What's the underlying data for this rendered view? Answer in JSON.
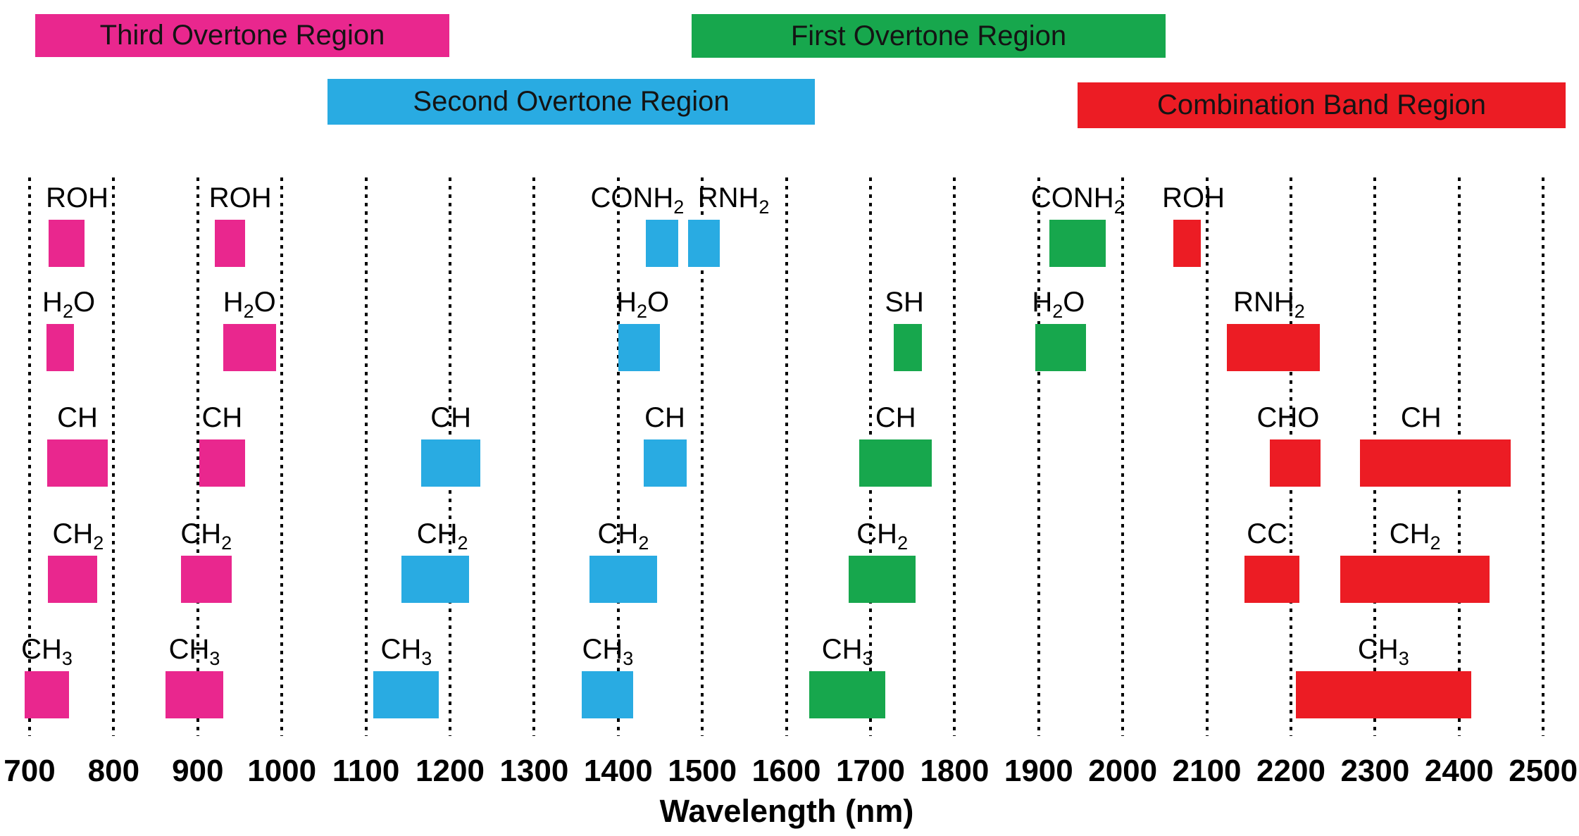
{
  "chart_data": {
    "type": "bar",
    "subtype": "horizontal-wavelength-band-chart",
    "title": "",
    "xlabel": "Wavelength (nm)",
    "x_min": 700,
    "x_max": 2500,
    "x_tick_step": 100,
    "x_ticks": [
      700,
      800,
      900,
      1000,
      1100,
      1200,
      1300,
      1400,
      1500,
      1600,
      1700,
      1800,
      1900,
      2000,
      2100,
      2200,
      2300,
      2400,
      2500
    ],
    "grid": "dotted-vertical",
    "legend_position": "top",
    "row_order": [
      "ROH",
      "H2O",
      "CH",
      "CH2",
      "CH3"
    ],
    "regions": [
      {
        "id": "third-overtone",
        "label": "Third Overtone Region",
        "color": "#E9278E",
        "bands": [
          {
            "label": "ROH",
            "row": 1,
            "nm": [
              723,
              765
            ],
            "label_dx": 15
          },
          {
            "label": "H2O",
            "row": 2,
            "nm": [
              720,
              753
            ],
            "label_dx": 12
          },
          {
            "label": "CH",
            "row": 3,
            "nm": [
              721,
              793
            ],
            "label_dx": 0
          },
          {
            "label": "CH2",
            "row": 4,
            "nm": [
              722,
              780
            ],
            "label_dx": 8
          },
          {
            "label": "CH3",
            "row": 5,
            "nm": [
              694,
              747
            ],
            "label_dx": 0
          },
          {
            "label": "ROH",
            "row": 1,
            "nm": [
              920,
              956
            ],
            "label_dx": 15
          },
          {
            "label": "H2O",
            "row": 2,
            "nm": [
              930,
              993
            ],
            "label_dx": 0
          },
          {
            "label": "CH",
            "row": 3,
            "nm": [
              902,
              956
            ],
            "label_dx": 0
          },
          {
            "label": "CH2",
            "row": 4,
            "nm": [
              880,
              940
            ],
            "label_dx": 0
          },
          {
            "label": "CH3",
            "row": 5,
            "nm": [
              862,
              930
            ],
            "label_dx": 0
          }
        ]
      },
      {
        "id": "second-overtone",
        "label": "Second Overtone Region",
        "color": "#29ABE2",
        "bands": [
          {
            "label": "CH3",
            "row": 5,
            "nm": [
              1109,
              1187
            ],
            "label_dx": 0
          },
          {
            "label": "CH2",
            "row": 4,
            "nm": [
              1142,
              1223
            ],
            "label_dx": 10
          },
          {
            "label": "CH",
            "row": 3,
            "nm": [
              1166,
              1236
            ],
            "label_dx": 0
          },
          {
            "label": "CH3",
            "row": 5,
            "nm": [
              1357,
              1418
            ],
            "label_dx": 0
          },
          {
            "label": "CH2",
            "row": 4,
            "nm": [
              1366,
              1446
            ],
            "label_dx": 0
          },
          {
            "label": "H2O",
            "row": 2,
            "nm": [
              1400,
              1450
            ],
            "label_dx": 5
          },
          {
            "label": "CH",
            "row": 3,
            "nm": [
              1430,
              1481
            ],
            "label_dx": 0
          },
          {
            "label": "CONH2",
            "row": 1,
            "nm": [
              1433,
              1471
            ],
            "label_dx": -35
          },
          {
            "label": "RNH2",
            "row": 1,
            "nm": [
              1483,
              1521
            ],
            "label_dx": 42
          }
        ]
      },
      {
        "id": "first-overtone",
        "label": "First Overtone Region",
        "color": "#17A74D",
        "bands": [
          {
            "label": "CH3",
            "row": 5,
            "nm": [
              1627,
              1718
            ],
            "label_dx": 0
          },
          {
            "label": "CH2",
            "row": 4,
            "nm": [
              1674,
              1754
            ],
            "label_dx": 0
          },
          {
            "label": "CH",
            "row": 3,
            "nm": [
              1687,
              1773
            ],
            "label_dx": 0
          },
          {
            "label": "SH",
            "row": 2,
            "nm": [
              1728,
              1761
            ],
            "label_dx": -5
          },
          {
            "label": "H2O",
            "row": 2,
            "nm": [
              1896,
              1956
            ],
            "label_dx": -3
          },
          {
            "label": "CONH2",
            "row": 1,
            "nm": [
              1913,
              1980
            ],
            "label_dx": 0
          }
        ]
      },
      {
        "id": "combination-band",
        "label": "Combination Band Region",
        "color": "#EC1C24",
        "bands": [
          {
            "label": "ROH",
            "row": 1,
            "nm": [
              2060,
              2093
            ],
            "label_dx": 9
          },
          {
            "label": "RNH2",
            "row": 2,
            "nm": [
              2124,
              2234
            ],
            "label_dx": -6
          },
          {
            "label": "CHO",
            "row": 3,
            "nm": [
              2175,
              2235
            ],
            "label_dx": -10
          },
          {
            "label": "CH",
            "row": 3,
            "nm": [
              2282,
              2461
            ],
            "label_dx": -20
          },
          {
            "label": "CC",
            "row": 4,
            "nm": [
              2145,
              2210
            ],
            "label_dx": -7
          },
          {
            "label": "CH2",
            "row": 4,
            "nm": [
              2259,
              2436
            ],
            "label_dx": 0
          },
          {
            "label": "CH3",
            "row": 5,
            "nm": [
              2206,
              2414
            ],
            "label_dx": 0
          }
        ]
      }
    ]
  }
}
